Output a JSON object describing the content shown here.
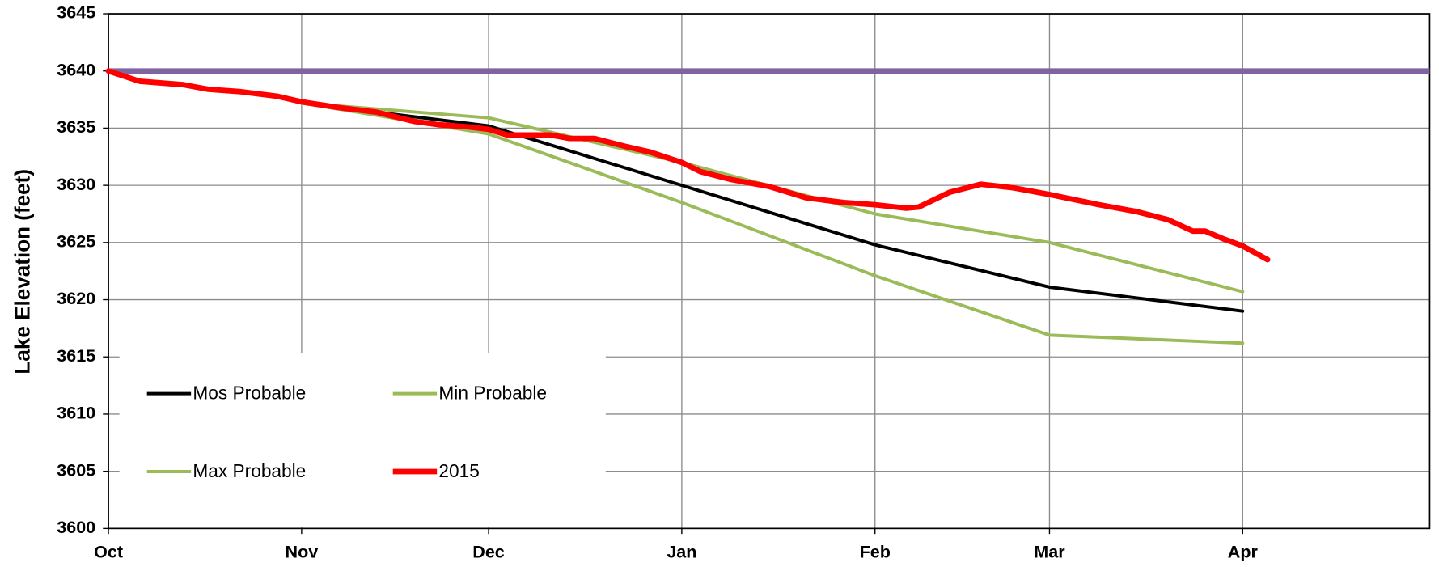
{
  "chart_data": {
    "type": "line",
    "y_label": "Lake Elevation (feet)",
    "xlim": [
      0,
      212
    ],
    "xticks": [
      {
        "value": 0,
        "label": "Oct"
      },
      {
        "value": 31,
        "label": "Nov"
      },
      {
        "value": 61,
        "label": "Dec"
      },
      {
        "value": 92,
        "label": "Jan"
      },
      {
        "value": 123,
        "label": "Feb"
      },
      {
        "value": 151,
        "label": "Mar"
      },
      {
        "value": 182,
        "label": "Apr"
      }
    ],
    "ylim": [
      3600,
      3645
    ],
    "yticks": [
      3600,
      3605,
      3610,
      3615,
      3620,
      3625,
      3630,
      3635,
      3640,
      3645
    ],
    "grid": true,
    "legend": "lower left",
    "reference_line": {
      "value": 3640,
      "color": "#8064a2"
    },
    "series": [
      {
        "name": "Mos Probable",
        "color": "#000000",
        "x": [
          31,
          61,
          92,
          123,
          151,
          182
        ],
        "values": [
          3637.2,
          3635.2,
          3630,
          3624.8,
          3621.1,
          3619
        ]
      },
      {
        "name": "Min Probable",
        "color": "#9bbb59",
        "x": [
          31,
          61,
          92,
          123,
          151,
          182
        ],
        "values": [
          3637.2,
          3634.5,
          3628.5,
          3622.1,
          3616.9,
          3616.2
        ]
      },
      {
        "name": "Max Probable",
        "color": "#9bbb59",
        "x": [
          31,
          61,
          92,
          123,
          151,
          182
        ],
        "values": [
          3637.2,
          3635.9,
          3632,
          3627.5,
          3625,
          3620.7
        ]
      },
      {
        "name": "2015",
        "color": "#ff0000",
        "x": [
          0,
          5,
          12,
          16,
          21,
          27,
          31,
          37,
          43,
          49,
          53,
          58,
          61,
          64,
          71,
          74,
          78,
          83,
          87,
          92,
          95,
          100,
          106,
          112,
          118,
          123,
          128,
          130,
          135,
          140,
          145,
          151,
          159,
          165,
          170,
          174,
          176,
          179,
          182,
          186
        ],
        "values": [
          3640,
          3639.1,
          3638.8,
          3638.4,
          3638.2,
          3637.8,
          3637.3,
          3636.8,
          3636.4,
          3635.6,
          3635.3,
          3635.1,
          3634.9,
          3634.4,
          3634.4,
          3634.1,
          3634.1,
          3633.4,
          3632.9,
          3632,
          3631.2,
          3630.5,
          3629.9,
          3628.9,
          3628.5,
          3628.3,
          3628,
          3628.1,
          3629.4,
          3630.1,
          3629.8,
          3629.2,
          3628.3,
          3627.7,
          3627,
          3626,
          3626,
          3625.3,
          3624.7,
          3623.5
        ]
      }
    ]
  }
}
